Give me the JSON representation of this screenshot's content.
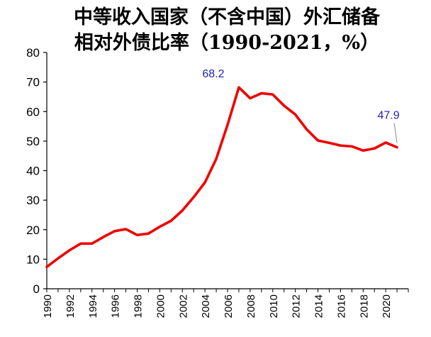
{
  "chart_data": {
    "type": "line",
    "title_line1": "中等收入国家（不含中国）外汇储备",
    "title_line2": "相对外债比率（1990-2021，%）",
    "xlabel": "",
    "ylabel": "",
    "ylim": [
      0,
      80
    ],
    "yticks": [
      "0",
      "10",
      "20",
      "30",
      "40",
      "50",
      "60",
      "70",
      "80"
    ],
    "xtick_labels": [
      "1990",
      "1992",
      "1994",
      "1996",
      "1998",
      "2000",
      "2002",
      "2004",
      "2006",
      "2008",
      "2010",
      "2012",
      "2014",
      "2016",
      "2018",
      "2020"
    ],
    "x": [
      1990,
      1991,
      1992,
      1993,
      1994,
      1995,
      1996,
      1997,
      1998,
      1999,
      2000,
      2001,
      2002,
      2003,
      2004,
      2005,
      2006,
      2007,
      2008,
      2009,
      2010,
      2011,
      2012,
      2013,
      2014,
      2015,
      2016,
      2017,
      2018,
      2019,
      2020,
      2021
    ],
    "series": [
      {
        "values": [
          7.4,
          10.3,
          13.0,
          15.3,
          15.3,
          17.5,
          19.5,
          20.2,
          18.2,
          18.7,
          21.0,
          23.0,
          26.5,
          31.0,
          36.0,
          44.0,
          55.5,
          68.2,
          64.5,
          66.2,
          65.8,
          62.0,
          59.0,
          54.0,
          50.2,
          49.4,
          48.5,
          48.2,
          46.8,
          47.5,
          49.5,
          47.9
        ],
        "color": "#ee0000"
      }
    ],
    "annotations": [
      {
        "text": "68.2",
        "x": 2007,
        "y": 68.2
      },
      {
        "text": "47.9",
        "x": 2021,
        "y": 47.9
      }
    ],
    "grid": false,
    "legend": "none"
  }
}
